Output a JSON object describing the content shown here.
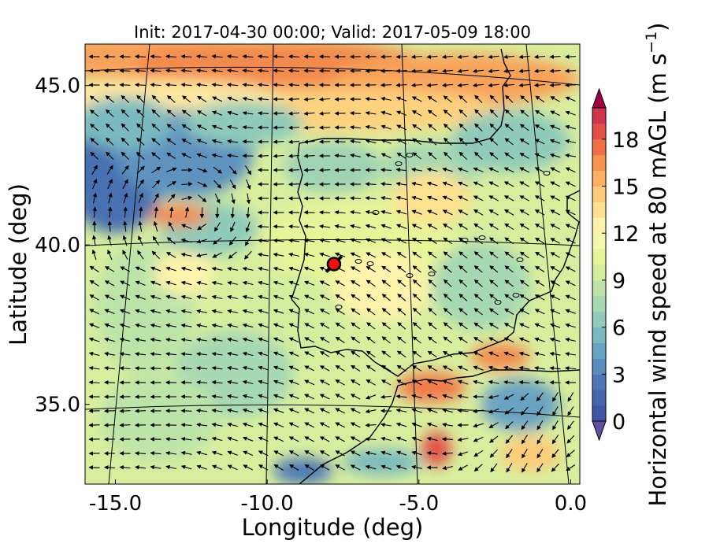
{
  "chart_data": {
    "type": "heatmap",
    "title": "Init: 2017-04-30 00:00; Valid: 2017-05-09 18:00",
    "xlabel": "Longitude (deg)",
    "ylabel": "Latitude (deg)",
    "xlim": [
      -16.0,
      0.3
    ],
    "ylim": [
      32.5,
      46.3
    ],
    "x_ticks": [
      -15.0,
      -10.0,
      -5.0,
      0.0
    ],
    "x_tick_labels": [
      "-15.0",
      "-10.0",
      "-5.0",
      "0.0"
    ],
    "y_ticks": [
      35.0,
      40.0,
      45.0
    ],
    "y_tick_labels": [
      "35.0",
      "40.0",
      "45.0"
    ],
    "grid": true,
    "projection_lines": true,
    "colorbar": {
      "label": "Horizontal wind speed at 80 mAGL (m s",
      "label_superscript": "−1",
      "label_suffix": ")",
      "vmin": 0,
      "vmax": 20,
      "step": 1,
      "extend": "both",
      "ticks": [
        0,
        3,
        6,
        9,
        12,
        15,
        18
      ],
      "tick_labels": [
        "0",
        "3",
        "6",
        "9",
        "12",
        "15",
        "18"
      ],
      "colormap": "Spectral_r",
      "colors": [
        "#3f54a5",
        "#4565ad",
        "#4d78b5",
        "#5a8ebd",
        "#66a4c2",
        "#7ab9c0",
        "#8fcaba",
        "#a6d8b2",
        "#bde4a8",
        "#d3ed9f",
        "#e6f49a",
        "#f3f8ac",
        "#fef3ab",
        "#fee191",
        "#fdcb79",
        "#fcb062",
        "#f8924f",
        "#f06f45",
        "#e34f47",
        "#d0334c"
      ],
      "over_color": "#9e0142",
      "under_color": "#5e4fa2"
    },
    "marker": {
      "lon": -7.8,
      "lat": 39.4,
      "face_color": "#ee1111",
      "edge_color": "#000000",
      "wind_direction_deg": 45
    },
    "field_description_colors": {
      "ocean_strong": "#f58d52",
      "ocean_moderate": "#d6ee9c",
      "calm": "#4a70b1"
    }
  }
}
